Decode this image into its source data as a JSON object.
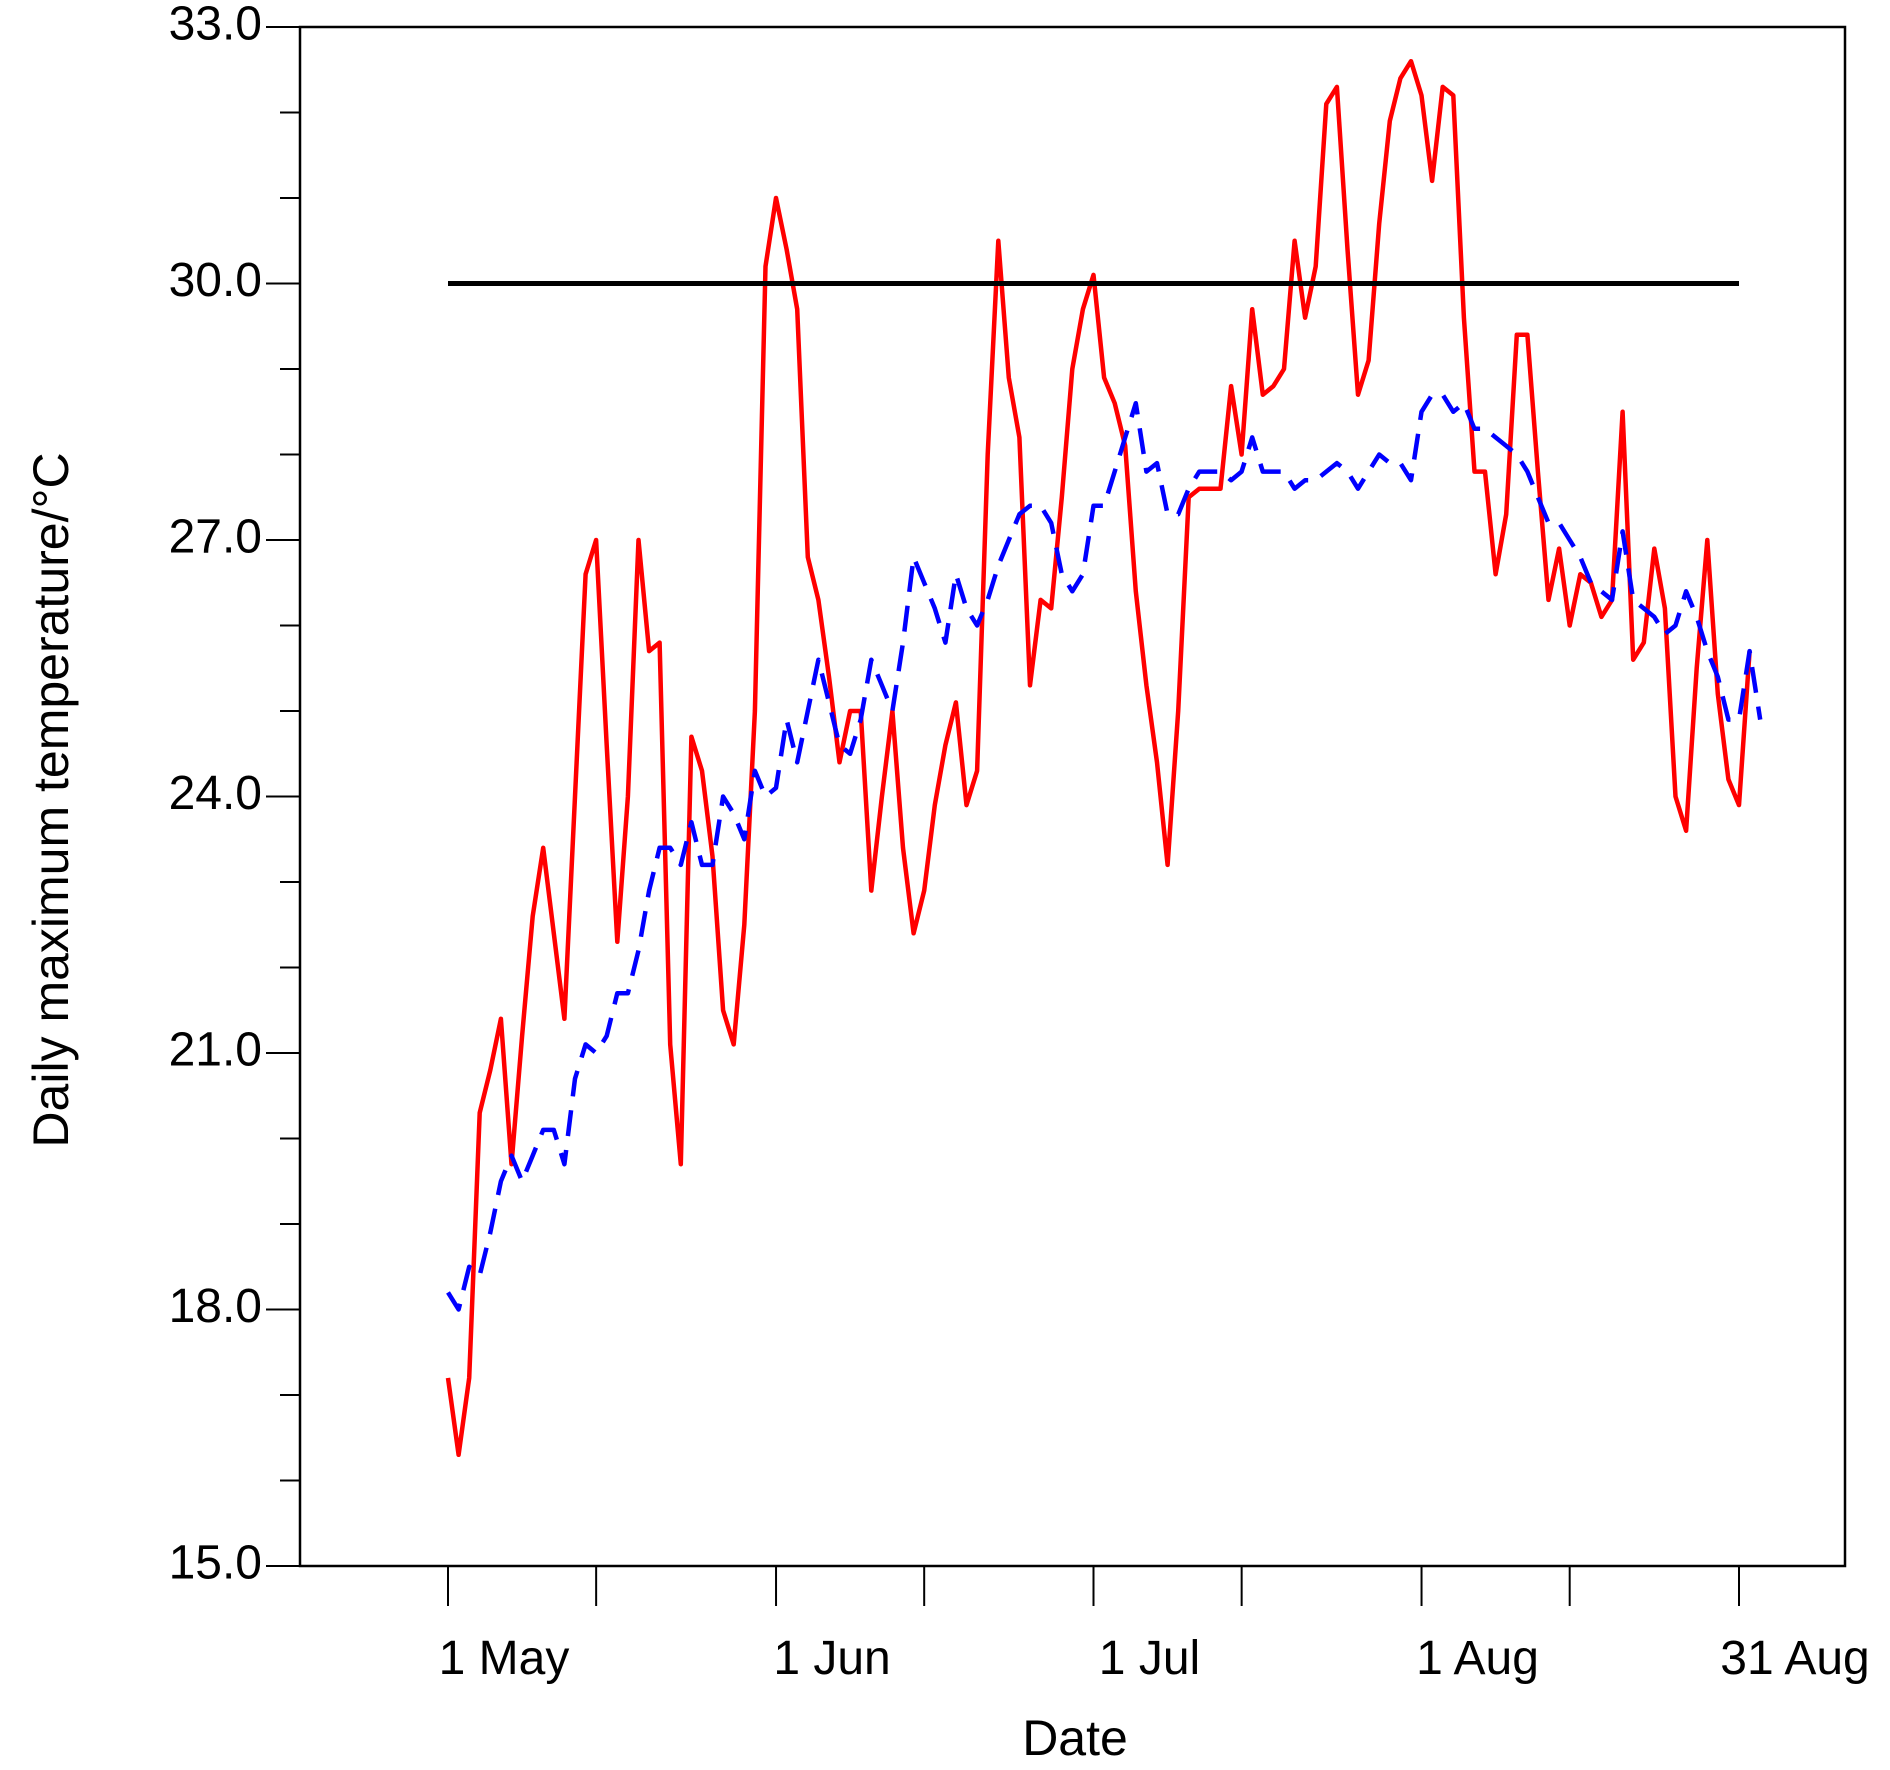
{
  "chart_data": {
    "type": "line",
    "title": "",
    "xlabel": "Date",
    "ylabel": "Daily maximum temperature/°C",
    "ylim": [
      15.0,
      33.0
    ],
    "yticks": [
      "15.0",
      "18.0",
      "21.0",
      "24.0",
      "27.0",
      "30.0",
      "33.0"
    ],
    "y_minor_step": 1.0,
    "x_day_range": [
      "1 May",
      "31 Aug"
    ],
    "xticks": [
      {
        "date": "1 May",
        "label": "1 May"
      },
      {
        "date": "15 May",
        "label": ""
      },
      {
        "date": "1 Jun",
        "label": "1 Jun"
      },
      {
        "date": "15 Jun",
        "label": ""
      },
      {
        "date": "1 Jul",
        "label": "1 Jul"
      },
      {
        "date": "15 Jul",
        "label": ""
      },
      {
        "date": "1 Aug",
        "label": "1 Aug"
      },
      {
        "date": "15 Aug",
        "label": ""
      },
      {
        "date": "31 Aug",
        "label": "31 Aug"
      }
    ],
    "grid": false,
    "legend": "none",
    "series": [
      {
        "style": "solid",
        "color": "#ff0000",
        "values": [
          17.2,
          16.3,
          17.2,
          20.3,
          20.8,
          21.4,
          19.7,
          21.2,
          22.6,
          23.4,
          22.4,
          21.4,
          24.0,
          26.6,
          27.0,
          24.6,
          22.3,
          24.0,
          27.0,
          25.7,
          25.8,
          21.1,
          19.7,
          24.7,
          24.3,
          23.3,
          21.5,
          21.1,
          22.5,
          25.0,
          30.2,
          31.0,
          30.4,
          29.7,
          26.8,
          26.3,
          25.4,
          24.4,
          25.0,
          25.0,
          22.9,
          24.0,
          25.0,
          23.4,
          22.4,
          22.9,
          23.9,
          24.6,
          25.1,
          23.9,
          24.3,
          28.0,
          30.5,
          28.9,
          28.2,
          25.3,
          26.3,
          26.2,
          27.5,
          29.0,
          29.7,
          30.1,
          28.9,
          28.6,
          28.1,
          26.4,
          25.3,
          24.4,
          23.2,
          25.0,
          27.5,
          27.6,
          27.6,
          27.6,
          28.8,
          28.0,
          29.7,
          28.7,
          28.8,
          29.0,
          30.5,
          29.6,
          30.2,
          32.1,
          32.3,
          30.4,
          28.7,
          29.1,
          30.7,
          31.9,
          32.4,
          32.6,
          32.2,
          31.2,
          32.3,
          32.2,
          29.6,
          27.8,
          27.8,
          26.6,
          27.3,
          29.4,
          29.4,
          27.8,
          26.3,
          26.9,
          26.0,
          26.6,
          26.5,
          26.1,
          26.3,
          28.5,
          25.6,
          25.8,
          26.9,
          26.2,
          24.0,
          23.6,
          25.5,
          27.0,
          25.2,
          24.2,
          23.9,
          25.7
        ]
      },
      {
        "style": "dashed",
        "color": "#0000ff",
        "values": [
          18.2,
          18.0,
          18.5,
          18.4,
          18.9,
          19.5,
          19.8,
          19.5,
          19.8,
          20.1,
          20.1,
          19.7,
          20.7,
          21.1,
          21.0,
          21.2,
          21.7,
          21.7,
          22.2,
          22.9,
          23.4,
          23.4,
          23.2,
          23.7,
          23.2,
          23.2,
          24.0,
          23.8,
          23.5,
          24.3,
          24.0,
          24.1,
          24.9,
          24.4,
          25.0,
          25.6,
          25.1,
          24.6,
          24.5,
          24.9,
          25.6,
          25.3,
          25.0,
          25.8,
          26.8,
          26.5,
          26.2,
          25.8,
          26.6,
          26.2,
          26.0,
          26.3,
          26.7,
          27.0,
          27.3,
          27.4,
          27.4,
          27.2,
          26.6,
          26.4,
          26.6,
          27.4,
          27.4,
          27.8,
          28.2,
          28.6,
          27.8,
          27.9,
          27.3,
          27.3,
          27.6,
          27.8,
          27.8,
          27.8,
          27.7,
          27.8,
          28.2,
          27.8,
          27.8,
          27.8,
          27.6,
          27.7,
          27.7,
          27.8,
          27.9,
          27.8,
          27.6,
          27.8,
          28.0,
          27.9,
          27.9,
          27.7,
          28.5,
          28.7,
          28.7,
          28.5,
          28.6,
          28.3,
          28.3,
          28.2,
          28.1,
          28.0,
          27.8,
          27.5,
          27.2,
          27.2,
          27.0,
          26.8,
          26.5,
          26.4,
          26.3,
          27.1,
          26.3,
          26.2,
          26.1,
          25.9,
          26.0,
          26.4,
          26.1,
          25.7,
          25.4,
          24.9,
          24.9,
          25.7,
          24.9
        ]
      },
      {
        "style": "solid",
        "color": "#000000",
        "values": [
          30.0,
          30.0
        ],
        "x": [
          "1 May",
          "31 Aug"
        ]
      }
    ]
  }
}
